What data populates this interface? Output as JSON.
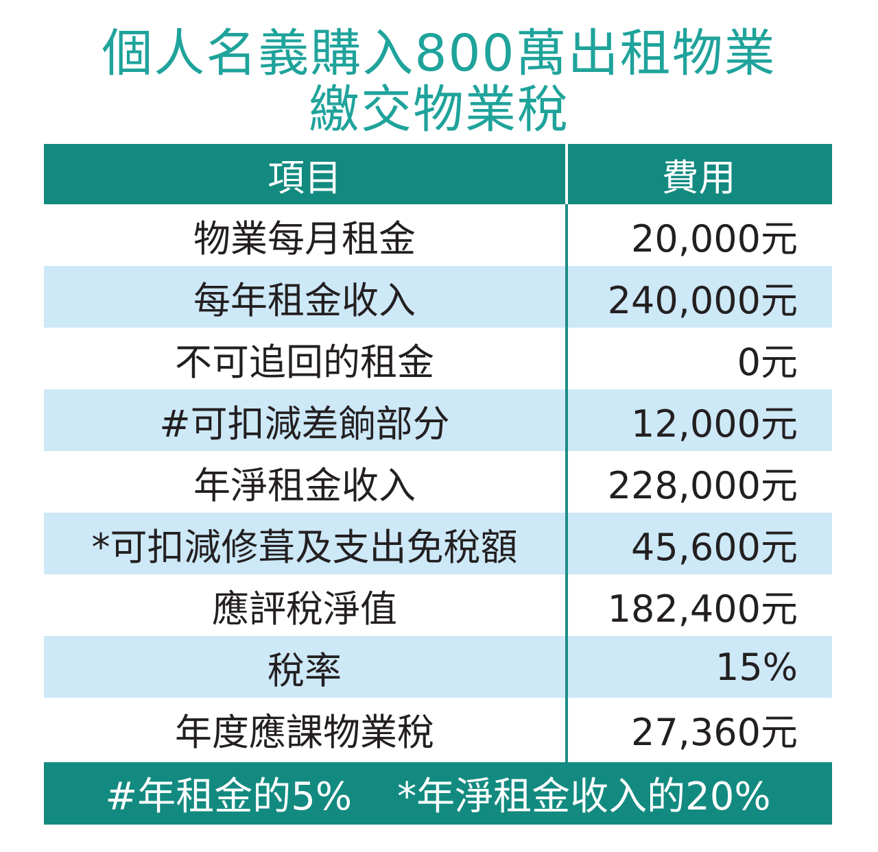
{
  "title": {
    "line1": "個人名義購入800萬出租物業",
    "line2": "繳交物業稅"
  },
  "table": {
    "headers": {
      "item": "項目",
      "fee": "費用"
    },
    "rows": [
      {
        "item": "物業每月租金",
        "fee": "20,000元"
      },
      {
        "item": "每年租金收入",
        "fee": "240,000元"
      },
      {
        "item": "不可追回的租金",
        "fee": "0元"
      },
      {
        "item": "#可扣減差餉部分",
        "fee": "12,000元"
      },
      {
        "item": "年淨租金收入",
        "fee": "228,000元"
      },
      {
        "item": "*可扣減修葺及支出免稅額",
        "fee": "45,600元"
      },
      {
        "item": "應評稅淨值",
        "fee": "182,400元"
      },
      {
        "item": "稅率",
        "fee": "15%"
      },
      {
        "item": "年度應課物業稅",
        "fee": "27,360元"
      }
    ]
  },
  "footnote": {
    "note1": "#年租金的5%",
    "note2": "*年淨租金收入的20%"
  },
  "colors": {
    "title": "#1fa39b",
    "header_bg": "#138a80",
    "alt_row_bg": "#cde8f7",
    "text": "#231f20"
  }
}
